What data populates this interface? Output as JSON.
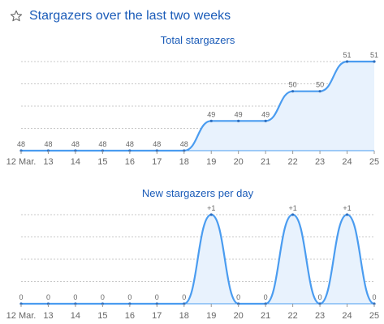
{
  "header": {
    "title": "Stargazers over the last two weeks",
    "icon": "star-outline-icon"
  },
  "colors": {
    "accent": "#4a9cf0",
    "fill": "#e8f2fd",
    "title": "#1a5bb8",
    "grid": "#c8c8c8",
    "text": "#666666"
  },
  "chart_data": [
    {
      "type": "area",
      "title": "Total stargazers",
      "xlabel": "",
      "ylabel": "",
      "x": [
        "12 Mar.",
        "13",
        "14",
        "15",
        "16",
        "17",
        "18",
        "19",
        "20",
        "21",
        "22",
        "23",
        "24",
        "25"
      ],
      "values": [
        48,
        48,
        48,
        48,
        48,
        48,
        48,
        49,
        49,
        49,
        50,
        50,
        51,
        51
      ],
      "data_labels": [
        "48",
        "48",
        "48",
        "48",
        "48",
        "48",
        "48",
        "49",
        "49",
        "49",
        "50",
        "50",
        "51",
        "51"
      ],
      "ylim": [
        48,
        51
      ],
      "grid": true,
      "smooth": true
    },
    {
      "type": "area",
      "title": "New stargazers per day",
      "xlabel": "",
      "ylabel": "",
      "x": [
        "12 Mar.",
        "13",
        "14",
        "15",
        "16",
        "17",
        "18",
        "19",
        "20",
        "21",
        "22",
        "23",
        "24",
        "25"
      ],
      "values": [
        0,
        0,
        0,
        0,
        0,
        0,
        0,
        1,
        0,
        0,
        1,
        0,
        1,
        0
      ],
      "data_labels": [
        "0",
        "0",
        "0",
        "0",
        "0",
        "0",
        "0",
        "+1",
        "0",
        "0",
        "+1",
        "0",
        "+1",
        "0"
      ],
      "ylim": [
        0,
        1
      ],
      "grid": true,
      "smooth": true
    }
  ]
}
